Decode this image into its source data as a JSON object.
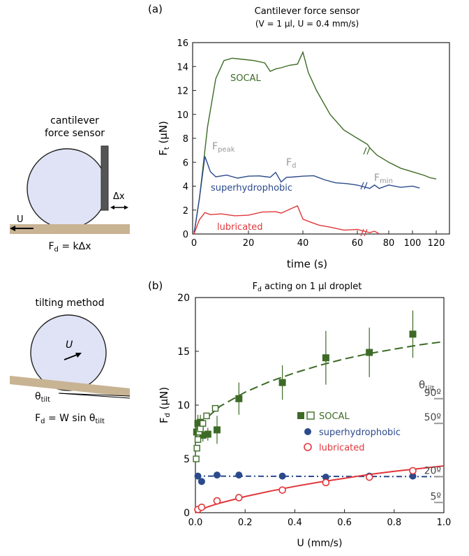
{
  "colors": {
    "socal": "#3d6b26",
    "superhydrophobic": "#2b4a8c",
    "lubricated": "#e0373b",
    "annot": "#999999",
    "base": "#c8b393",
    "drop": "#dfe3f5",
    "dropStroke": "#222222"
  },
  "diagrams": {
    "cantilever": {
      "title1": "cantilever",
      "title2": "force sensor",
      "u": "U",
      "dx": "Δx",
      "eq": "F_d = kΔx"
    },
    "tilting": {
      "title": "tilting method",
      "u": "U",
      "theta": "θ_tilt",
      "eq": "F_d = W sin θ_tilt"
    }
  },
  "chart_data": [
    {
      "panel": "(a)",
      "type": "line",
      "title": "Cantilever force sensor",
      "subtitle": "(V = 1 μl, U = 0.4 mm/s)",
      "xlabel": "time (s)",
      "ylabel": "F_t (μN)",
      "xticks": [
        0,
        20,
        40,
        60,
        80,
        100,
        120
      ],
      "yticks": [
        0,
        2,
        4,
        6,
        8,
        10,
        12,
        14,
        16
      ],
      "ylim": [
        0,
        16
      ],
      "grid": false,
      "series": [
        {
          "name": "SOCAL",
          "x": [
            0,
            2,
            5,
            8,
            11,
            14,
            18,
            22,
            26,
            28,
            30,
            32,
            35,
            38,
            40,
            42,
            45,
            50,
            55,
            60,
            62,
            64,
            70,
            80,
            90,
            100,
            110,
            115,
            120
          ],
          "y": [
            0,
            3,
            9,
            13,
            14.5,
            14.7,
            14.6,
            14.5,
            14.3,
            13.6,
            13.8,
            13.9,
            14.1,
            14.2,
            15.2,
            13.5,
            12,
            10,
            8.7,
            8,
            7.5,
            7.2,
            6.6,
            6.0,
            5.5,
            5.2,
            4.9,
            4.7,
            4.6
          ]
        },
        {
          "name": "superhydrophobic",
          "x": [
            0,
            2,
            4,
            6,
            8,
            12,
            16,
            20,
            24,
            28,
            30,
            32,
            34,
            36,
            40,
            44,
            48,
            52,
            56,
            60,
            64,
            68,
            72,
            80,
            90,
            100,
            106
          ],
          "y": [
            0,
            3,
            6.5,
            5.2,
            4.8,
            4.9,
            4.7,
            4.8,
            4.9,
            4.7,
            5.2,
            4.3,
            4.8,
            4.7,
            4.9,
            4.8,
            4.6,
            4.2,
            4.3,
            4.0,
            3.9,
            4.0,
            3.9,
            4.0,
            4.0,
            3.9,
            3.95
          ]
        },
        {
          "name": "lubricated",
          "x": [
            0,
            2,
            4,
            6,
            10,
            15,
            20,
            25,
            30,
            32,
            35,
            38,
            40,
            42,
            46,
            50,
            55,
            60,
            64,
            68,
            72
          ],
          "y": [
            0,
            1.2,
            1.8,
            1.6,
            1.7,
            1.5,
            1.6,
            1.8,
            1.9,
            1.7,
            2.1,
            2.3,
            1.3,
            1.0,
            0.8,
            0.5,
            0.4,
            0.3,
            0.2,
            0.15,
            0.1
          ]
        }
      ],
      "annotations": [
        {
          "text": "SOCAL",
          "series": "socal"
        },
        {
          "text": "F_peak",
          "series": "annot"
        },
        {
          "text": "F_d",
          "series": "annot"
        },
        {
          "text": "F_min",
          "series": "annot"
        },
        {
          "text": "superhydrophobic",
          "series": "superhydrophobic"
        },
        {
          "text": "lubricated",
          "series": "lubricated"
        }
      ]
    },
    {
      "panel": "(b)",
      "type": "scatter",
      "title": "F_d acting on 1 μl droplet",
      "xlabel": "U (mm/s)",
      "ylabel": "F_d (μN)",
      "xticks": [
        "0.0",
        "0.2",
        "0.4",
        "0.6",
        "0.8",
        "1.0"
      ],
      "yticks": [
        0,
        5,
        10,
        15,
        20
      ],
      "xlim": [
        0,
        1
      ],
      "ylim": [
        0,
        20
      ],
      "grid": false,
      "legend": [
        {
          "label": "SOCAL",
          "marker": "square-filled-open"
        },
        {
          "label": "superhydrophobic",
          "marker": "circle-filled"
        },
        {
          "label": "lubricated",
          "marker": "circle-open"
        }
      ],
      "series": [
        {
          "name": "SOCAL",
          "marker": "filled-square",
          "x": [
            0.005,
            0.01,
            0.02,
            0.03,
            0.05,
            0.087,
            0.175,
            0.35,
            0.525,
            0.7,
            0.875
          ],
          "y": [
            7.5,
            8.3,
            8.4,
            7.2,
            7.3,
            7.7,
            10.6,
            12.1,
            14.4,
            14.9,
            16.6
          ],
          "err": [
            0.8,
            0.8,
            0.7,
            0.6,
            0.6,
            1.3,
            1.5,
            1.6,
            2.5,
            2.3,
            2.2
          ]
        },
        {
          "name": "SOCAL",
          "marker": "open-square",
          "x": [
            0.003,
            0.006,
            0.01,
            0.015,
            0.02,
            0.03,
            0.045,
            0.08
          ],
          "y": [
            5.0,
            6.0,
            6.8,
            7.5,
            7.8,
            8.3,
            9.0,
            9.7
          ]
        },
        {
          "name": "superhydrophobic",
          "marker": "filled-circle",
          "x": [
            0.01,
            0.025,
            0.087,
            0.175,
            0.35,
            0.525,
            0.7,
            0.875
          ],
          "y": [
            3.4,
            2.9,
            3.5,
            3.5,
            3.4,
            3.3,
            3.4,
            3.4
          ]
        },
        {
          "name": "lubricated",
          "marker": "open-circle",
          "x": [
            0.01,
            0.025,
            0.087,
            0.175,
            0.35,
            0.525,
            0.7,
            0.875
          ],
          "y": [
            0.3,
            0.5,
            1.1,
            1.4,
            2.1,
            2.8,
            3.3,
            3.9
          ]
        }
      ],
      "fits": [
        {
          "series": "SOCAL",
          "style": "dashed",
          "x": [
            0.05,
            0.1,
            0.2,
            0.3,
            0.4,
            0.5,
            0.6,
            0.7,
            0.8,
            0.9,
            1.0
          ],
          "y": [
            8.9,
            9.9,
            11.2,
            12.2,
            13.0,
            13.7,
            14.3,
            14.8,
            15.2,
            15.6,
            15.9
          ]
        },
        {
          "series": "superhydrophobic",
          "style": "dash-dot",
          "x": [
            0,
            1
          ],
          "y": [
            3.4,
            3.35
          ]
        },
        {
          "series": "lubricated",
          "style": "solid",
          "x": [
            0,
            0.05,
            0.1,
            0.2,
            0.3,
            0.4,
            0.5,
            0.6,
            0.7,
            0.8,
            0.9,
            1.0
          ],
          "y": [
            0.0,
            0.55,
            0.9,
            1.5,
            2.0,
            2.45,
            2.85,
            3.2,
            3.55,
            3.85,
            4.1,
            4.35
          ]
        }
      ],
      "theta_scale": {
        "title": "θ_tilt",
        "ticks": [
          {
            "label": "90º",
            "y": 10.6
          },
          {
            "label": "50º",
            "y": 8.3
          },
          {
            "label": "20º",
            "y": 3.35
          },
          {
            "label": "5º",
            "y": 0.95
          }
        ]
      }
    }
  ]
}
